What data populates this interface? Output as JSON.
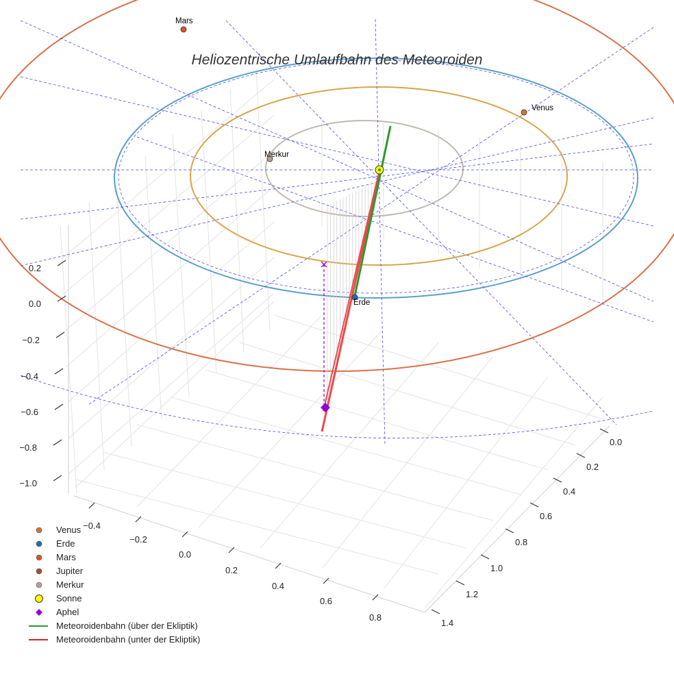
{
  "chart_data": {
    "type": "scatter",
    "title": "Heliozentrische Umlaufbahn des Meteoroiden",
    "z_ticks": [
      "0.2",
      "0.0",
      "−0.2",
      "−0.4",
      "−0.6",
      "−0.8",
      "−1.0"
    ],
    "x_ticks": [
      "−0.4",
      "−0.2",
      "0.0",
      "0.2",
      "0.4",
      "0.6",
      "0.8"
    ],
    "y_ticks": [
      "0.0",
      "0.2",
      "0.4",
      "0.6",
      "0.8",
      "1.0",
      "1.2",
      "1.4"
    ],
    "planet_labels": [
      "Mars",
      "Venus",
      "Merkur",
      "Erde"
    ],
    "series": [
      {
        "name": "Venus",
        "color": "#d2762a",
        "marker": "circle"
      },
      {
        "name": "Erde",
        "color": "#1f6fb0",
        "marker": "circle"
      },
      {
        "name": "Mars",
        "color": "#d2572b",
        "marker": "circle"
      },
      {
        "name": "Jupiter",
        "color": "#a0522d",
        "marker": "circle"
      },
      {
        "name": "Merkur",
        "color": "#b59f95",
        "marker": "circle"
      },
      {
        "name": "Sonne",
        "color": "#ffff00",
        "marker": "circle-large"
      },
      {
        "name": "Aphel",
        "color": "#9400d3",
        "marker": "diamond"
      },
      {
        "name": "Meteoroidenbahn (über der Ekliptik)",
        "color": "#2a9a2a",
        "marker": "line"
      },
      {
        "name": "Meteoroidenbahn (unter der Ekliptik)",
        "color": "#e02020",
        "marker": "line"
      }
    ],
    "orbit_colors": {
      "mars": "#d8704a",
      "earth": "#5aa0c8",
      "venus": "#d6a64c",
      "mercury": "#c2b8b4",
      "guide": "#4a4ae0"
    },
    "legend_position": "bottom-left",
    "grid": true
  }
}
